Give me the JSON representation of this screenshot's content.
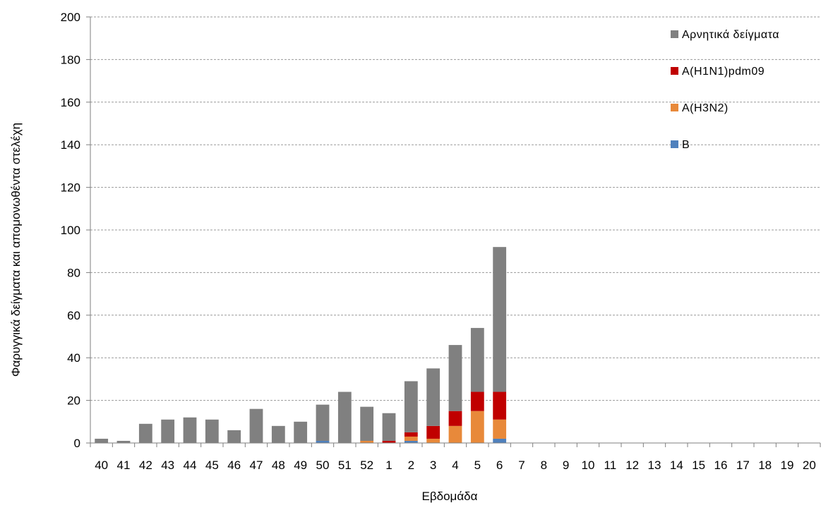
{
  "chart_data": {
    "type": "bar",
    "stacked": true,
    "xlabel": "Εβδομάδα",
    "ylabel": "Φαρυγγικά δείγματα και απομονωθέντα στελέχη",
    "ylim": [
      0,
      200
    ],
    "yticks": [
      0,
      20,
      40,
      60,
      80,
      100,
      120,
      140,
      160,
      180,
      200
    ],
    "grid": true,
    "legend_position": "top-right",
    "categories": [
      "40",
      "41",
      "42",
      "43",
      "44",
      "45",
      "46",
      "47",
      "48",
      "49",
      "50",
      "51",
      "52",
      "1",
      "2",
      "3",
      "4",
      "5",
      "6",
      "7",
      "8",
      "9",
      "10",
      "11",
      "12",
      "13",
      "14",
      "15",
      "16",
      "17",
      "18",
      "19",
      "20"
    ],
    "series": [
      {
        "name": "B",
        "color": "#4f81bd",
        "values": [
          0,
          0,
          0,
          0,
          0,
          0,
          0,
          0,
          0,
          0,
          1,
          0,
          0,
          0,
          1,
          0,
          0,
          0,
          2,
          0,
          0,
          0,
          0,
          0,
          0,
          0,
          0,
          0,
          0,
          0,
          0,
          0,
          0
        ]
      },
      {
        "name": "A(H3N2)",
        "color": "#e8893a",
        "values": [
          0,
          0,
          0,
          0,
          0,
          0,
          0,
          0,
          0,
          0,
          0,
          0,
          1,
          0,
          2,
          2,
          8,
          15,
          9,
          0,
          0,
          0,
          0,
          0,
          0,
          0,
          0,
          0,
          0,
          0,
          0,
          0,
          0
        ]
      },
      {
        "name": "A(H1N1)pdm09",
        "color": "#c00000",
        "values": [
          0,
          0,
          0,
          0,
          0,
          0,
          0,
          0,
          0,
          0,
          0,
          0,
          0,
          1,
          2,
          6,
          7,
          9,
          13,
          0,
          0,
          0,
          0,
          0,
          0,
          0,
          0,
          0,
          0,
          0,
          0,
          0,
          0
        ]
      },
      {
        "name": "Αρνητικά δείγματα",
        "color": "#808080",
        "values": [
          2,
          1,
          9,
          11,
          12,
          11,
          6,
          16,
          8,
          10,
          17,
          24,
          16,
          13,
          24,
          27,
          31,
          30,
          68,
          0,
          0,
          0,
          0,
          0,
          0,
          0,
          0,
          0,
          0,
          0,
          0,
          0,
          0
        ]
      }
    ],
    "legend_order": [
      "Αρνητικά δείγματα",
      "A(H1N1)pdm09",
      "A(H3N2)",
      "B"
    ]
  },
  "colors": {
    "grid": "#9a9a9a",
    "axis": "#7f7f7f",
    "text": "#000000"
  }
}
